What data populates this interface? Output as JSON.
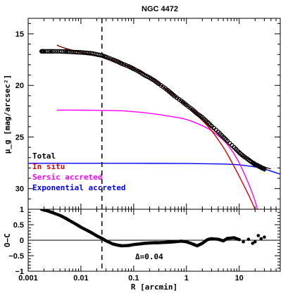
{
  "chart_data": {
    "type": "line",
    "title": "NGC 4472",
    "xlabel": "R [arcmin]",
    "xscale": "log",
    "xlim": [
      0.001,
      60
    ],
    "x_tick_labels": [
      "0.001",
      "0.01",
      "0.1",
      "1",
      "10"
    ],
    "x_tick_values": [
      0.001,
      0.01,
      0.1,
      1,
      10
    ],
    "dashed_vline_x": 0.025,
    "top_panel": {
      "ylabel": "μ_g [mag/arcsec²]",
      "ylim": [
        32,
        13.5
      ],
      "y_tick_values": [
        15,
        20,
        25,
        30
      ],
      "y_tick_labels": [
        "15",
        "20",
        "25",
        "30"
      ],
      "legend": {
        "placement": "bottom-left",
        "entries": [
          {
            "label": "Total",
            "color": "#000000"
          },
          {
            "label": "In situ",
            "color": "#e00000"
          },
          {
            "label": "Sersic accreted",
            "color": "#ff00ff"
          },
          {
            "label": "Exponential accreted",
            "color": "#0000ff"
          }
        ]
      },
      "series": [
        {
          "name": "Total",
          "color": "#6b0000",
          "x": [
            0.0035,
            0.005,
            0.01,
            0.02,
            0.05,
            0.1,
            0.2,
            0.5,
            1,
            2,
            5,
            10,
            20,
            30,
            40
          ],
          "y": [
            16.1,
            16.4,
            16.8,
            17.1,
            17.7,
            18.4,
            19.2,
            20.7,
            21.9,
            23.2,
            25.2,
            26.6,
            27.5,
            27.9,
            28.1
          ]
        },
        {
          "name": "In situ",
          "color": "#e00000",
          "x": [
            0.005,
            0.01,
            0.02,
            0.05,
            0.1,
            0.2,
            0.5,
            1,
            2,
            3,
            5,
            7,
            10,
            15,
            20,
            24
          ],
          "y": [
            16.5,
            16.8,
            17.1,
            17.7,
            18.4,
            19.2,
            20.7,
            21.9,
            23.4,
            24.4,
            26.0,
            27.3,
            28.8,
            30.6,
            32.0,
            33.0
          ]
        },
        {
          "name": "Sersic accreted",
          "color": "#ff00ff",
          "x": [
            0.0035,
            0.01,
            0.05,
            0.1,
            0.2,
            0.5,
            1,
            2,
            3,
            5,
            7,
            10,
            15,
            20,
            25
          ],
          "y": [
            22.4,
            22.4,
            22.45,
            22.55,
            22.7,
            23.0,
            23.3,
            23.9,
            24.4,
            25.3,
            26.2,
            27.5,
            29.5,
            31.2,
            33.0
          ]
        },
        {
          "name": "Exponential accreted",
          "color": "#0000ff",
          "x": [
            0.001,
            0.01,
            0.1,
            1,
            5,
            10,
            20,
            30,
            60
          ],
          "y": [
            27.55,
            27.55,
            27.55,
            27.57,
            27.62,
            27.7,
            27.9,
            28.1,
            28.6
          ]
        }
      ],
      "observed": {
        "name": "Observed profile",
        "x": [
          0.0018,
          0.002,
          0.0025,
          0.003,
          0.004,
          0.005,
          0.006,
          0.008,
          0.01,
          0.013,
          0.016,
          0.02,
          0.025,
          0.03,
          0.04,
          0.05,
          0.06,
          0.08,
          0.1,
          0.13,
          0.16,
          0.2,
          0.25,
          0.3,
          0.4,
          0.5,
          0.6,
          0.8,
          1,
          1.3,
          1.6,
          2,
          2.5,
          3,
          4,
          5,
          6,
          8,
          10,
          12,
          15,
          18,
          20,
          23,
          26,
          30
        ],
        "y": [
          16.7,
          16.7,
          16.7,
          16.7,
          16.7,
          16.72,
          16.74,
          16.78,
          16.8,
          16.85,
          16.9,
          17.0,
          17.1,
          17.25,
          17.5,
          17.7,
          17.9,
          18.15,
          18.4,
          18.7,
          19.0,
          19.25,
          19.55,
          19.85,
          20.3,
          20.7,
          21.05,
          21.5,
          21.9,
          22.35,
          22.75,
          23.1,
          23.55,
          23.95,
          24.5,
          25.0,
          25.4,
          26.0,
          26.5,
          26.85,
          27.2,
          27.5,
          27.65,
          27.8,
          27.95,
          28.1
        ]
      }
    },
    "bottom_panel": {
      "ylabel": "O−C",
      "ylim": [
        -1,
        1
      ],
      "y_tick_values": [
        1,
        0.5,
        0,
        -0.5,
        -1
      ],
      "y_tick_labels": [
        "1",
        "0.5",
        "0",
        "−0.5",
        "−1"
      ],
      "annotation": "Δ=0.04",
      "zero_line": true,
      "residuals": {
        "x": [
          0.0018,
          0.002,
          0.0025,
          0.003,
          0.004,
          0.005,
          0.006,
          0.008,
          0.01,
          0.013,
          0.016,
          0.02,
          0.025,
          0.03,
          0.04,
          0.05,
          0.06,
          0.08,
          0.1,
          0.13,
          0.16,
          0.2,
          0.25,
          0.3,
          0.4,
          0.5,
          0.6,
          0.8,
          1,
          1.3,
          1.6,
          2,
          2.5,
          3,
          4,
          5,
          6,
          8,
          10,
          12,
          15,
          18,
          20,
          23,
          26,
          30
        ],
        "y": [
          1.0,
          0.98,
          0.93,
          0.88,
          0.8,
          0.72,
          0.64,
          0.52,
          0.42,
          0.32,
          0.24,
          0.14,
          0.06,
          -0.02,
          -0.12,
          -0.16,
          -0.18,
          -0.17,
          -0.14,
          -0.12,
          -0.1,
          -0.09,
          -0.08,
          -0.08,
          -0.07,
          -0.06,
          -0.05,
          -0.03,
          -0.05,
          -0.12,
          -0.18,
          -0.1,
          0.02,
          0.05,
          0.03,
          -0.02,
          0.06,
          0.08,
          0.02,
          -0.05,
          0.03,
          -0.1,
          -0.05,
          0.15,
          0.05,
          0.1
        ]
      }
    }
  }
}
